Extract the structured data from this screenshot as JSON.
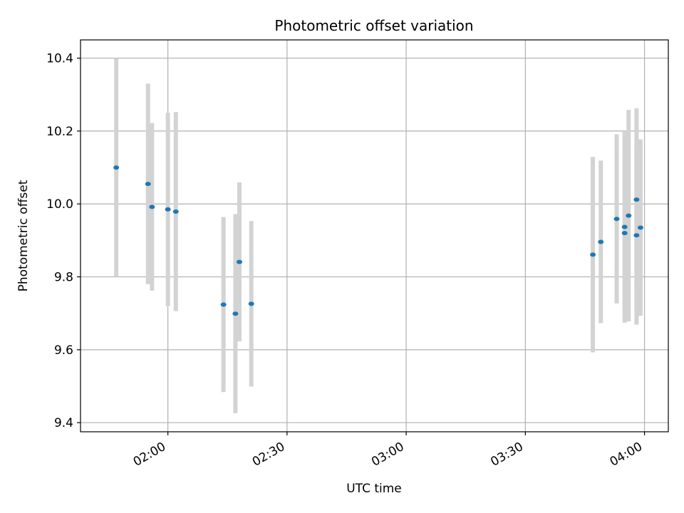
{
  "chart_data": {
    "type": "scatter",
    "title": "Photometric offset variation",
    "xlabel": "UTC time",
    "ylabel": "Photometric offset",
    "grid": true,
    "x_range": [
      "01:38",
      "04:06"
    ],
    "y_range": [
      9.375,
      10.45
    ],
    "x_ticks": [
      "02:00",
      "02:30",
      "03:00",
      "03:30",
      "04:00"
    ],
    "y_ticks": [
      9.4,
      9.6,
      9.8,
      10.0,
      10.2,
      10.4
    ],
    "y_tick_labels": [
      "9.4",
      "9.6",
      "9.8",
      "10.0",
      "10.2",
      "10.4"
    ],
    "colors": {
      "marker": "#1f77b4",
      "errorbar": "#d3d3d3",
      "grid": "#b0b0b0"
    },
    "points": [
      {
        "x": "01:47",
        "y": 10.1,
        "err": 0.3
      },
      {
        "x": "01:55",
        "y": 10.055,
        "err": 0.275
      },
      {
        "x": "01:56",
        "y": 9.992,
        "err": 0.23
      },
      {
        "x": "02:00",
        "y": 9.985,
        "err": 0.265
      },
      {
        "x": "02:02",
        "y": 9.979,
        "err": 0.273
      },
      {
        "x": "02:14",
        "y": 9.724,
        "err": 0.24
      },
      {
        "x": "02:17",
        "y": 9.699,
        "err": 0.273
      },
      {
        "x": "02:18",
        "y": 9.841,
        "err": 0.218
      },
      {
        "x": "02:21",
        "y": 9.726,
        "err": 0.227
      },
      {
        "x": "03:47",
        "y": 9.861,
        "err": 0.268
      },
      {
        "x": "03:49",
        "y": 9.896,
        "err": 0.223
      },
      {
        "x": "03:53",
        "y": 9.959,
        "err": 0.232
      },
      {
        "x": "03:55",
        "y": 9.92,
        "err": 0.21
      },
      {
        "x": "03:55",
        "y": 9.937,
        "err": 0.263
      },
      {
        "x": "03:56",
        "y": 9.968,
        "err": 0.29
      },
      {
        "x": "03:58",
        "y": 10.012,
        "err": 0.25
      },
      {
        "x": "03:58",
        "y": 9.914,
        "err": 0.245
      },
      {
        "x": "03:59",
        "y": 9.935,
        "err": 0.242
      }
    ]
  }
}
